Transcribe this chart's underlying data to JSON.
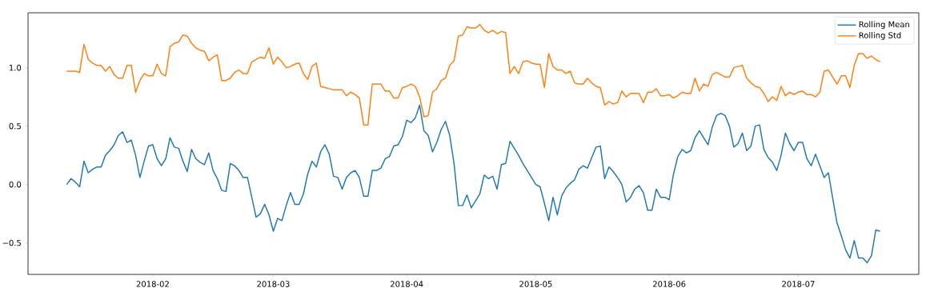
{
  "chart_data": {
    "type": "line",
    "x": [
      "2018-01-12",
      "2018-01-13",
      "2018-01-14",
      "2018-01-15",
      "2018-01-16",
      "2018-01-17",
      "2018-01-18",
      "2018-01-19",
      "2018-01-20",
      "2018-01-21",
      "2018-01-22",
      "2018-01-23",
      "2018-01-24",
      "2018-01-25",
      "2018-01-26",
      "2018-01-27",
      "2018-01-28",
      "2018-01-29",
      "2018-01-30",
      "2018-01-31",
      "2018-02-01",
      "2018-02-02",
      "2018-02-03",
      "2018-02-04",
      "2018-02-05",
      "2018-02-06",
      "2018-02-07",
      "2018-02-08",
      "2018-02-09",
      "2018-02-10",
      "2018-02-11",
      "2018-02-12",
      "2018-02-13",
      "2018-02-14",
      "2018-02-15",
      "2018-02-16",
      "2018-02-17",
      "2018-02-18",
      "2018-02-19",
      "2018-02-20",
      "2018-02-21",
      "2018-02-22",
      "2018-02-23",
      "2018-02-24",
      "2018-02-25",
      "2018-02-26",
      "2018-02-27",
      "2018-02-28",
      "2018-03-01",
      "2018-03-02",
      "2018-03-03",
      "2018-03-04",
      "2018-03-05",
      "2018-03-06",
      "2018-03-07",
      "2018-03-08",
      "2018-03-09",
      "2018-03-10",
      "2018-03-11",
      "2018-03-12",
      "2018-03-13",
      "2018-03-14",
      "2018-03-15",
      "2018-03-16",
      "2018-03-17",
      "2018-03-18",
      "2018-03-19",
      "2018-03-20",
      "2018-03-21",
      "2018-03-22",
      "2018-03-23",
      "2018-03-24",
      "2018-03-25",
      "2018-03-26",
      "2018-03-27",
      "2018-03-28",
      "2018-03-29",
      "2018-03-30",
      "2018-03-31",
      "2018-04-01",
      "2018-04-02",
      "2018-04-03",
      "2018-04-04",
      "2018-04-05",
      "2018-04-06",
      "2018-04-07",
      "2018-04-08",
      "2018-04-09",
      "2018-04-10",
      "2018-04-11",
      "2018-04-12",
      "2018-04-13",
      "2018-04-14",
      "2018-04-15",
      "2018-04-16",
      "2018-04-17",
      "2018-04-18",
      "2018-04-19",
      "2018-04-20",
      "2018-04-21",
      "2018-04-22",
      "2018-04-23",
      "2018-04-24",
      "2018-04-25",
      "2018-04-26",
      "2018-04-27",
      "2018-04-28",
      "2018-04-29",
      "2018-04-30",
      "2018-05-01",
      "2018-05-02",
      "2018-05-03",
      "2018-05-04",
      "2018-05-05",
      "2018-05-06",
      "2018-05-07",
      "2018-05-08",
      "2018-05-09",
      "2018-05-10",
      "2018-05-11",
      "2018-05-12",
      "2018-05-13",
      "2018-05-14",
      "2018-05-15",
      "2018-05-16",
      "2018-05-17",
      "2018-05-18",
      "2018-05-19",
      "2018-05-20",
      "2018-05-21",
      "2018-05-22",
      "2018-05-23",
      "2018-05-24",
      "2018-05-25",
      "2018-05-26",
      "2018-05-27",
      "2018-05-28",
      "2018-05-29",
      "2018-05-30",
      "2018-05-31",
      "2018-06-01",
      "2018-06-02",
      "2018-06-03",
      "2018-06-04",
      "2018-06-05",
      "2018-06-06",
      "2018-06-07",
      "2018-06-08",
      "2018-06-09",
      "2018-06-10",
      "2018-06-11",
      "2018-06-12",
      "2018-06-13",
      "2018-06-14",
      "2018-06-15",
      "2018-06-16",
      "2018-06-17",
      "2018-06-18",
      "2018-06-19",
      "2018-06-20",
      "2018-06-21",
      "2018-06-22",
      "2018-06-23",
      "2018-06-24",
      "2018-06-25",
      "2018-06-26",
      "2018-06-27",
      "2018-06-28",
      "2018-06-29",
      "2018-06-30",
      "2018-07-01",
      "2018-07-02",
      "2018-07-03",
      "2018-07-04",
      "2018-07-05",
      "2018-07-06",
      "2018-07-07",
      "2018-07-08",
      "2018-07-09",
      "2018-07-10",
      "2018-07-11",
      "2018-07-12",
      "2018-07-13",
      "2018-07-14",
      "2018-07-15",
      "2018-07-16",
      "2018-07-17",
      "2018-07-18",
      "2018-07-19",
      "2018-07-20"
    ],
    "series": [
      {
        "name": "Rolling Mean",
        "color": "#1f77b4",
        "values": [
          0.0,
          0.05,
          0.02,
          -0.02,
          0.2,
          0.1,
          0.13,
          0.15,
          0.15,
          0.25,
          0.29,
          0.34,
          0.42,
          0.45,
          0.36,
          0.38,
          0.25,
          0.06,
          0.2,
          0.33,
          0.34,
          0.22,
          0.16,
          0.22,
          0.4,
          0.32,
          0.31,
          0.2,
          0.11,
          0.3,
          0.22,
          0.19,
          0.17,
          0.27,
          0.12,
          0.05,
          -0.05,
          -0.06,
          0.18,
          0.16,
          0.12,
          0.06,
          0.06,
          -0.11,
          -0.28,
          -0.25,
          -0.17,
          -0.26,
          -0.4,
          -0.29,
          -0.31,
          -0.18,
          -0.07,
          -0.17,
          -0.17,
          -0.08,
          0.09,
          0.2,
          0.15,
          0.28,
          0.34,
          0.26,
          0.07,
          0.06,
          -0.04,
          0.06,
          0.1,
          0.12,
          0.06,
          -0.1,
          -0.1,
          0.12,
          0.12,
          0.14,
          0.22,
          0.24,
          0.33,
          0.34,
          0.41,
          0.55,
          0.53,
          0.57,
          0.68,
          0.46,
          0.42,
          0.28,
          0.36,
          0.47,
          0.54,
          0.42,
          0.18,
          -0.18,
          -0.18,
          -0.09,
          -0.2,
          -0.14,
          -0.08,
          0.08,
          0.05,
          0.07,
          -0.04,
          0.17,
          0.18,
          0.37,
          0.31,
          0.25,
          0.18,
          0.12,
          0.06,
          0.0,
          -0.02,
          -0.16,
          -0.31,
          -0.11,
          -0.26,
          -0.1,
          -0.03,
          0.01,
          0.04,
          0.13,
          0.16,
          0.14,
          0.23,
          0.32,
          0.33,
          0.05,
          0.15,
          0.11,
          0.06,
          0.0,
          -0.15,
          -0.11,
          -0.04,
          -0.01,
          -0.07,
          -0.22,
          -0.22,
          -0.04,
          -0.11,
          -0.11,
          -0.13,
          0.09,
          0.24,
          0.3,
          0.27,
          0.29,
          0.4,
          0.46,
          0.4,
          0.34,
          0.49,
          0.59,
          0.61,
          0.59,
          0.5,
          0.32,
          0.35,
          0.44,
          0.29,
          0.33,
          0.5,
          0.51,
          0.3,
          0.23,
          0.19,
          0.12,
          0.25,
          0.44,
          0.35,
          0.29,
          0.36,
          0.36,
          0.22,
          0.16,
          0.26,
          0.16,
          0.06,
          0.1,
          -0.12,
          -0.33,
          -0.44,
          -0.56,
          -0.63,
          -0.48,
          -0.63,
          -0.63,
          -0.67,
          -0.61,
          -0.39,
          -0.4
        ]
      },
      {
        "name": "Rolling Std",
        "color": "#ff7f0e",
        "values": [
          0.97,
          0.97,
          0.97,
          0.96,
          1.2,
          1.07,
          1.04,
          1.02,
          1.02,
          0.97,
          1.01,
          0.94,
          0.91,
          0.91,
          1.02,
          1.02,
          0.79,
          0.89,
          0.95,
          0.93,
          0.93,
          1.03,
          0.95,
          0.93,
          1.18,
          1.21,
          1.22,
          1.28,
          1.27,
          1.21,
          1.17,
          1.15,
          1.14,
          1.06,
          1.09,
          1.11,
          0.89,
          0.89,
          0.91,
          0.96,
          0.98,
          0.95,
          0.95,
          1.05,
          1.07,
          1.09,
          1.08,
          1.17,
          1.03,
          1.09,
          1.05,
          1.0,
          1.01,
          1.03,
          1.04,
          0.95,
          0.9,
          1.01,
          1.04,
          0.84,
          0.83,
          0.82,
          0.81,
          0.81,
          0.81,
          0.76,
          0.79,
          0.77,
          0.74,
          0.51,
          0.51,
          0.86,
          0.86,
          0.86,
          0.8,
          0.8,
          0.74,
          0.74,
          0.83,
          0.84,
          0.86,
          0.84,
          0.75,
          0.58,
          0.59,
          0.79,
          0.82,
          0.89,
          0.91,
          1.02,
          1.06,
          1.27,
          1.28,
          1.35,
          1.34,
          1.34,
          1.37,
          1.32,
          1.3,
          1.32,
          1.29,
          1.31,
          1.3,
          0.95,
          1.01,
          0.95,
          1.05,
          1.06,
          1.04,
          1.03,
          1.03,
          0.83,
          1.12,
          1.01,
          0.98,
          0.98,
          0.95,
          0.97,
          0.87,
          0.86,
          0.86,
          0.91,
          0.87,
          0.84,
          0.83,
          0.68,
          0.71,
          0.69,
          0.7,
          0.8,
          0.75,
          0.78,
          0.78,
          0.78,
          0.7,
          0.79,
          0.79,
          0.82,
          0.76,
          0.76,
          0.77,
          0.74,
          0.76,
          0.79,
          0.78,
          0.78,
          0.91,
          0.8,
          0.86,
          0.84,
          0.94,
          0.96,
          0.94,
          0.92,
          0.92,
          1.0,
          1.01,
          1.02,
          0.91,
          0.87,
          0.84,
          0.83,
          0.78,
          0.71,
          0.75,
          0.72,
          0.84,
          0.76,
          0.79,
          0.77,
          0.79,
          0.8,
          0.77,
          0.77,
          0.75,
          0.79,
          0.97,
          0.98,
          0.92,
          0.86,
          0.93,
          0.93,
          0.83,
          1.02,
          1.12,
          1.12,
          1.08,
          1.1,
          1.07,
          1.05
        ]
      }
    ],
    "xlim": [
      "2018-01-03",
      "2018-07-29"
    ],
    "ylim": [
      -0.77,
      1.47
    ],
    "xticks": [
      {
        "value": "2018-02-01",
        "label": "2018-02"
      },
      {
        "value": "2018-03-01",
        "label": "2018-03"
      },
      {
        "value": "2018-04-01",
        "label": "2018-04"
      },
      {
        "value": "2018-05-01",
        "label": "2018-05"
      },
      {
        "value": "2018-06-01",
        "label": "2018-06"
      },
      {
        "value": "2018-07-01",
        "label": "2018-07"
      }
    ],
    "yticks": [
      {
        "value": -0.5,
        "label": "−0.5"
      },
      {
        "value": 0,
        "label": "0.0"
      },
      0.5,
      {
        "value": 1,
        "label": "1.0"
      }
    ],
    "legend": "top right"
  }
}
